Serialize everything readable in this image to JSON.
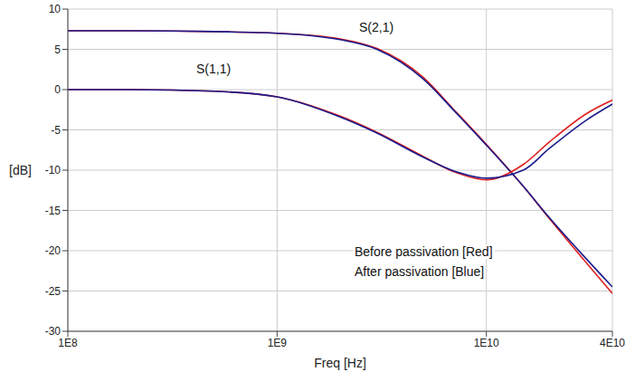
{
  "chart_data": {
    "type": "line",
    "x": [
      100000000,
      200000000,
      500000000,
      1000000000,
      2000000000,
      3000000000,
      5000000000,
      7000000000,
      10000000000,
      15000000000,
      20000000000,
      30000000000,
      40000000000
    ],
    "series": [
      {
        "name": "S(2,1)",
        "color": "#e02020",
        "values": [
          7.3,
          7.3,
          7.2,
          7.0,
          6.3,
          5.1,
          1.5,
          -2.5,
          -6.8,
          -12,
          -16,
          -21.5,
          -25.3
        ]
      },
      {
        "name": "S(2,1)",
        "color": "#1c1c8c",
        "values": [
          7.3,
          7.3,
          7.2,
          7.0,
          6.2,
          5.0,
          1.3,
          -2.6,
          -6.9,
          -12,
          -15.9,
          -21,
          -24.5
        ]
      },
      {
        "name": "S(1,1)",
        "color": "#e02020",
        "values": [
          0,
          0,
          -0.2,
          -0.9,
          -3.3,
          -5.3,
          -8.3,
          -10.2,
          -11.2,
          -9.3,
          -6.5,
          -3,
          -1.3
        ]
      },
      {
        "name": "S(1,1)",
        "color": "#1c1c8c",
        "values": [
          0,
          0,
          -0.2,
          -0.9,
          -3.4,
          -5.4,
          -8.4,
          -10.1,
          -11.0,
          -10,
          -7.3,
          -3.8,
          -1.8
        ]
      }
    ],
    "xlim": [
      100000000,
      40000000000
    ],
    "ylim": [
      -30,
      10
    ],
    "xticks": [
      {
        "value": 100000000,
        "label": "1E8"
      },
      {
        "value": 1000000000,
        "label": "1E9"
      },
      {
        "value": 10000000000,
        "label": "1E10"
      },
      {
        "value": 40000000000,
        "label": "4E10"
      }
    ],
    "yticks": [
      -30,
      -25,
      -20,
      -15,
      -10,
      -5,
      0,
      5,
      10
    ],
    "log": "x",
    "grid": true,
    "x_label": "Freq [Hz]",
    "y_label": "[dB]",
    "annotations": [
      "Before passivation [Red]",
      "After passivation [Blue]"
    ]
  }
}
